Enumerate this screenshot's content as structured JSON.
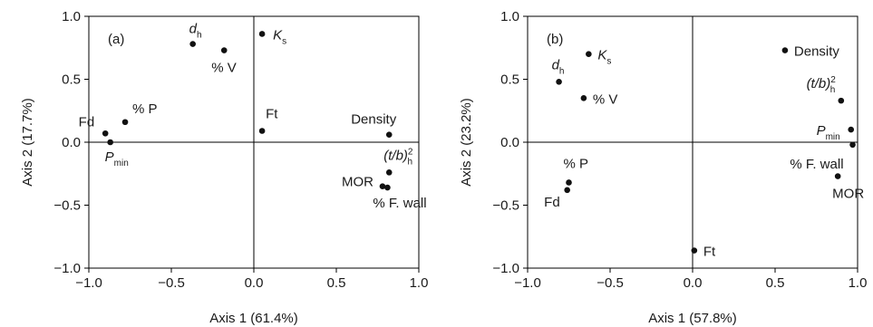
{
  "chart_data": [
    {
      "type": "scatter",
      "panel_label": "(a)",
      "xlabel": "Axis 1 (61.4%)",
      "ylabel": "Axis 2 (17.7%)",
      "xlim": [
        -1.0,
        1.0
      ],
      "ylim": [
        -1.0,
        1.0
      ],
      "xticks": [
        "−1.0",
        "−0.5",
        "0.0",
        "0.5",
        "1.0"
      ],
      "yticks": [
        "−1.0",
        "−0.5",
        "0.0",
        "0.5",
        "1.0"
      ],
      "reference_lines": {
        "x": 0,
        "y": 0
      },
      "grid": false,
      "points": [
        {
          "label": "Fd",
          "x": -0.9,
          "y": 0.07
        },
        {
          "label": "% P",
          "x": -0.78,
          "y": 0.16
        },
        {
          "label": "P",
          "sub": "min",
          "x": -0.87,
          "y": 0.0
        },
        {
          "label": "d",
          "sub": "h",
          "x": -0.37,
          "y": 0.78
        },
        {
          "label": "% V",
          "x": -0.18,
          "y": 0.73
        },
        {
          "label": "K",
          "sub": "s",
          "x": 0.05,
          "y": 0.86
        },
        {
          "label": "Ft",
          "x": 0.05,
          "y": 0.09
        },
        {
          "label": "Density",
          "x": 0.82,
          "y": 0.06
        },
        {
          "label": "(t/b)",
          "sub": "h",
          "sup": "2",
          "x": 0.82,
          "y": -0.24
        },
        {
          "label": "MOR",
          "x": 0.78,
          "y": -0.35
        },
        {
          "label": "% F. wall",
          "x": 0.81,
          "y": -0.36
        }
      ]
    },
    {
      "type": "scatter",
      "panel_label": "(b)",
      "xlabel": "Axis 1 (57.8%)",
      "ylabel": "Axis 2 (23.2%)",
      "xlim": [
        -1.0,
        1.0
      ],
      "ylim": [
        -1.0,
        1.0
      ],
      "xticks": [
        "−1.0",
        "−0.5",
        "0.0",
        "0.5",
        "1.0"
      ],
      "yticks": [
        "−1.0",
        "−0.5",
        "0.0",
        "0.5",
        "1.0"
      ],
      "reference_lines": {
        "x": 0,
        "y": 0
      },
      "grid": false,
      "points": [
        {
          "label": "Density",
          "x": 0.56,
          "y": 0.73
        },
        {
          "label": "K",
          "sub": "s",
          "x": -0.63,
          "y": 0.7
        },
        {
          "label": "d",
          "sub": "h",
          "x": -0.81,
          "y": 0.48
        },
        {
          "label": "% V",
          "x": -0.66,
          "y": 0.35
        },
        {
          "label": "(t/b)",
          "sub": "h",
          "sup": "2",
          "x": 0.9,
          "y": 0.33
        },
        {
          "label": "P",
          "sub": "min",
          "x": 0.96,
          "y": 0.1
        },
        {
          "label": "% F. wall",
          "x": 0.97,
          "y": -0.02
        },
        {
          "label": "MOR",
          "x": 0.88,
          "y": -0.27
        },
        {
          "label": "% P",
          "x": -0.75,
          "y": -0.32
        },
        {
          "label": "Fd",
          "x": -0.76,
          "y": -0.38
        },
        {
          "label": "Ft",
          "x": 0.01,
          "y": -0.86
        }
      ]
    }
  ]
}
